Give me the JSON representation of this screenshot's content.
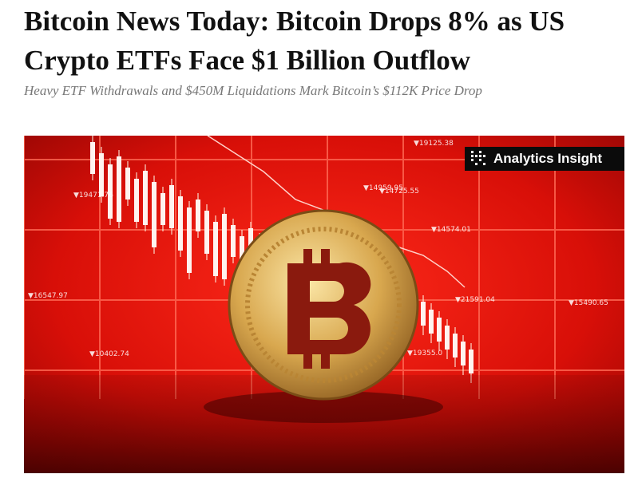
{
  "header": {
    "title": "Bitcoin News Today: Bitcoin Drops 8% as US Crypto ETFs Face $1 Billion Outflow",
    "subtitle": "Heavy ETF Withdrawals and $450M Liquidations Mark Bitcoin’s $112K Price Drop"
  },
  "image": {
    "logo": "Analytics Insight",
    "tickers": [
      "▼19125.38",
      "▼14959.95",
      "▼14725.55",
      "▼14574.01",
      "▼19471.76",
      "▼16547.97",
      "▼21591.04",
      "▼15490.65",
      "▼10402.74",
      "▼19355.0"
    ]
  }
}
